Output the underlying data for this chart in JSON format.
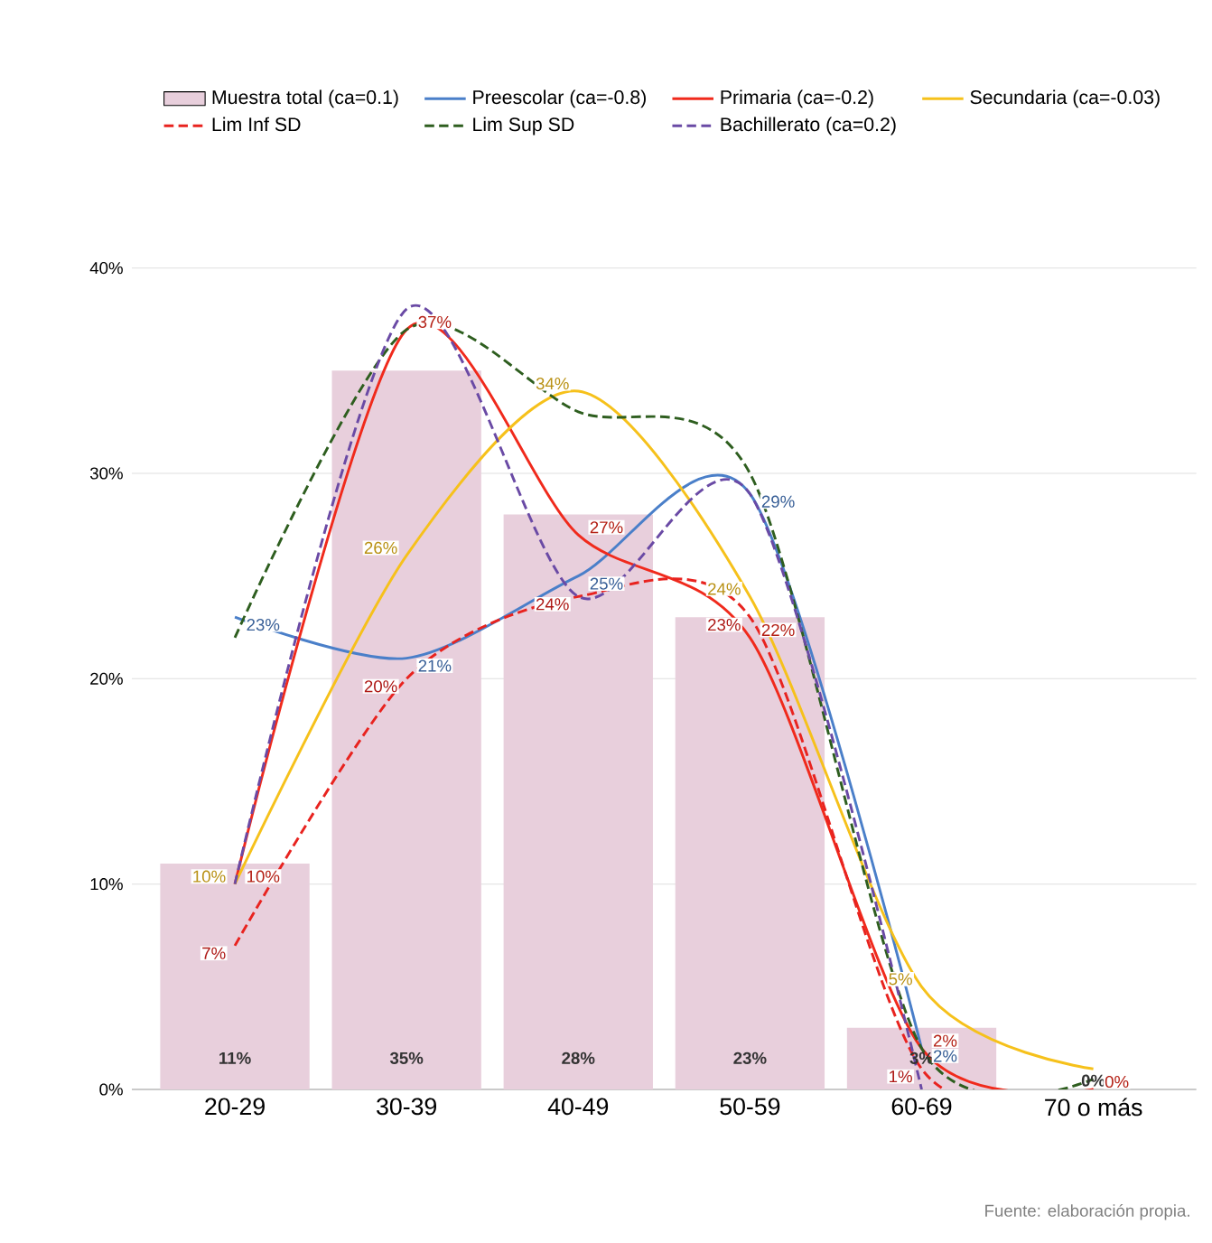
{
  "chart_data": {
    "type": "bar",
    "categories": [
      "20-29",
      "30-39",
      "40-49",
      "50-59",
      "60-69",
      "70 o más"
    ],
    "ylim": [
      0,
      40
    ],
    "yticks": [
      {
        "value": 0,
        "label": "0%"
      },
      {
        "value": 10,
        "label": "10%"
      },
      {
        "value": 20,
        "label": "20%"
      },
      {
        "value": 30,
        "label": "30%"
      },
      {
        "value": 40,
        "label": "40%"
      }
    ],
    "grid": "y",
    "legend": "top",
    "marker": "none",
    "annotations": [
      "Fuente: elaboración propia."
    ],
    "series": [
      {
        "name": "Muestra total (ca=0.1)",
        "color": "#e8cfdc",
        "values": [
          11,
          35,
          28,
          23,
          3,
          0
        ],
        "value_labels": [
          "11%",
          "35%",
          "28%",
          "23%",
          "3%",
          "0%"
        ]
      },
      {
        "name": "Preescolar (ca=-0.8)",
        "type": "line",
        "color": "#4a7fc9",
        "values": [
          23,
          21,
          25,
          29,
          2,
          null
        ],
        "value_labels": [
          "23%",
          "21%",
          "25%",
          "29%",
          "2%",
          null
        ]
      },
      {
        "name": "Primaria (ca=-0.2)",
        "type": "line",
        "color": "#f02a1c",
        "values": [
          10,
          37,
          27,
          22,
          2,
          0
        ],
        "value_labels": [
          "10%",
          "37%",
          "27%",
          "22%",
          "2%",
          "0%"
        ]
      },
      {
        "name": "Secundaria (ca=-0.03)",
        "type": "line",
        "color": "#f6c11b",
        "values": [
          10,
          26,
          34,
          24,
          5,
          1
        ],
        "value_labels": [
          "10%",
          "26%",
          "34%",
          "24%",
          "5%",
          null
        ]
      },
      {
        "name": "Lim Inf SD",
        "type": "line",
        "line_style": "dashed",
        "color": "#e8231f",
        "values": [
          7,
          20,
          24,
          23,
          1,
          0
        ],
        "value_labels": [
          "7%",
          "20%",
          "24%",
          "23%",
          "1%",
          null
        ]
      },
      {
        "name": "Lim Sup SD",
        "type": "line",
        "line_style": "dashed",
        "color": "#2e5e1f",
        "values": [
          22,
          37,
          33,
          30,
          2,
          0.5
        ]
      },
      {
        "name": "Bachillerato (ca=0.2)",
        "type": "line",
        "line_style": "dashed",
        "color": "#6a4aa5",
        "values": [
          10,
          38,
          24,
          29,
          0,
          null
        ]
      }
    ]
  }
}
